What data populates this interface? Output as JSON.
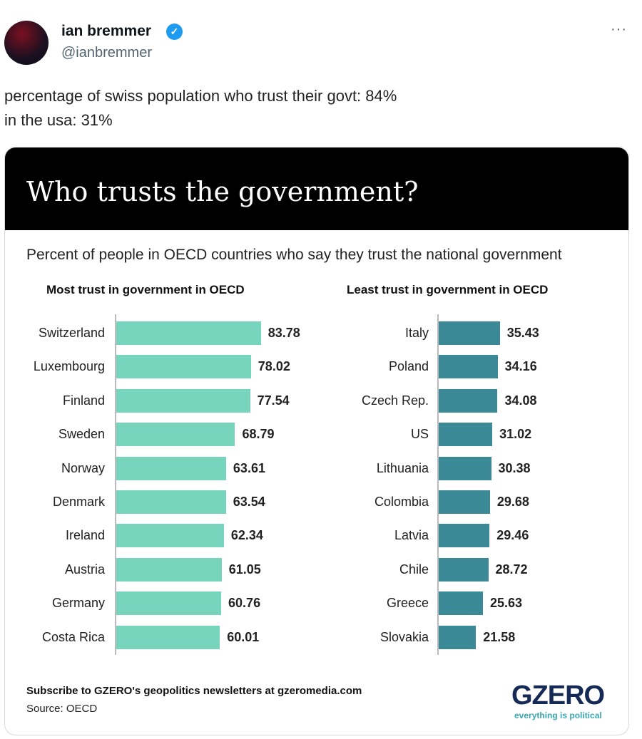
{
  "tweet": {
    "author": "ian bremmer",
    "handle": "@ianbremmer",
    "more": "···",
    "lines": [
      "percentage of swiss population who trust their govt: 84%",
      "in the usa: 31%"
    ]
  },
  "card": {
    "title": "Who trusts the government?",
    "subtitle": "Percent of people in OECD countries who say they trust the national government",
    "footer": "Subscribe to GZERO's geopolitics newsletters at gzeromedia.com",
    "source": "Source: OECD",
    "logo": "GZERO",
    "tagline": "everything is political"
  },
  "colors": {
    "most": "#78d5bd",
    "least": "#3b8896"
  },
  "chart_data": [
    {
      "type": "bar",
      "orientation": "horizontal",
      "title": "Most trust in government in OECD",
      "categories": [
        "Switzerland",
        "Luxembourg",
        "Finland",
        "Sweden",
        "Norway",
        "Denmark",
        "Ireland",
        "Austria",
        "Germany",
        "Costa Rica"
      ],
      "values": [
        83.78,
        78.02,
        77.54,
        68.79,
        63.61,
        63.54,
        62.34,
        61.05,
        60.76,
        60.01
      ]
    },
    {
      "type": "bar",
      "orientation": "horizontal",
      "title": "Least trust in government in OECD",
      "categories": [
        "Italy",
        "Poland",
        "Czech Rep.",
        "US",
        "Lithuania",
        "Colombia",
        "Latvia",
        "Chile",
        "Greece",
        "Slovakia"
      ],
      "values": [
        35.43,
        34.16,
        34.08,
        31.02,
        30.38,
        29.68,
        29.46,
        28.72,
        25.63,
        21.58
      ]
    }
  ]
}
